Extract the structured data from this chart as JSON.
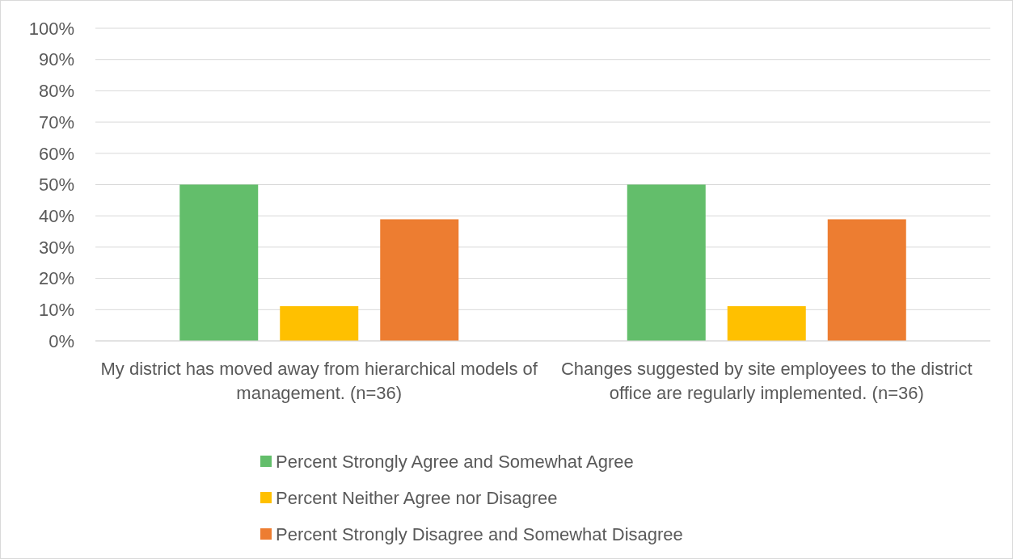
{
  "chart_data": {
    "type": "bar",
    "categories": [
      "My district has moved away from hierarchical models of management. (n=36)",
      "Changes suggested by site employees to the district office are regularly implemented. (n=36)"
    ],
    "series": [
      {
        "name": "Percent Strongly Agree and Somewhat Agree",
        "color": "#63be6b",
        "values": [
          50,
          50
        ]
      },
      {
        "name": "Percent Neither Agree nor Disagree",
        "color": "#ffc000",
        "values": [
          11.1,
          11.1
        ]
      },
      {
        "name": "Percent Strongly Disagree and Somewhat Disagree",
        "color": "#ed7d31",
        "values": [
          38.9,
          38.9
        ]
      }
    ],
    "ylim": [
      0,
      100
    ],
    "yticks": [
      {
        "value": 0,
        "label": "0%"
      },
      {
        "value": 10,
        "label": "10%"
      },
      {
        "value": 20,
        "label": "20%"
      },
      {
        "value": 30,
        "label": "30%"
      },
      {
        "value": 40,
        "label": "40%"
      },
      {
        "value": 50,
        "label": "50%"
      },
      {
        "value": 60,
        "label": "60%"
      },
      {
        "value": 70,
        "label": "70%"
      },
      {
        "value": 80,
        "label": "80%"
      },
      {
        "value": 90,
        "label": "90%"
      },
      {
        "value": 100,
        "label": "100%"
      }
    ],
    "grid": "y",
    "legend": "bottom"
  }
}
